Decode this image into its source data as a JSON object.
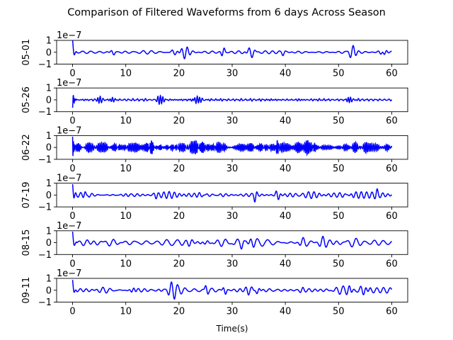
{
  "chart_data": {
    "type": "line",
    "title": "Comparison of Filtered Waveforms from 6 days Across Season",
    "xlabel": "Time(s)",
    "xlim": [
      -3,
      63
    ],
    "xticks": [
      0,
      10,
      20,
      30,
      40,
      50,
      60
    ],
    "ylim": [
      -1,
      1
    ],
    "yticks": [
      -1,
      0,
      1
    ],
    "y_scale_offset": "1e−7",
    "line_color": "#0000ff",
    "grid": false,
    "panels": [
      {
        "ylabel": "05-01",
        "duration": 60,
        "amplitude_typical": 0.25,
        "amplitude_peak": 1.0,
        "start_spike": 1.0,
        "dominant_period_s": 1.5
      },
      {
        "ylabel": "05-26",
        "duration": 60,
        "amplitude_typical": 0.15,
        "amplitude_peak": 0.6,
        "start_spike": -0.7,
        "dominant_period_s": 0.6
      },
      {
        "ylabel": "06-22",
        "duration": 60,
        "amplitude_typical": 0.6,
        "amplitude_peak": 1.0,
        "start_spike": 1.0,
        "dominant_period_s": 0.3
      },
      {
        "ylabel": "07-19",
        "duration": 60,
        "amplitude_typical": 0.35,
        "amplitude_peak": 0.85,
        "start_spike": 1.0,
        "dominant_period_s": 1.3
      },
      {
        "ylabel": "08-15",
        "duration": 60,
        "amplitude_typical": 0.4,
        "amplitude_peak": 0.8,
        "start_spike": 1.0,
        "dominant_period_s": 1.6
      },
      {
        "ylabel": "09-11",
        "duration": 60,
        "amplitude_typical": 0.4,
        "amplitude_peak": 0.85,
        "start_spike": 0.85,
        "dominant_period_s": 1.4
      }
    ]
  }
}
